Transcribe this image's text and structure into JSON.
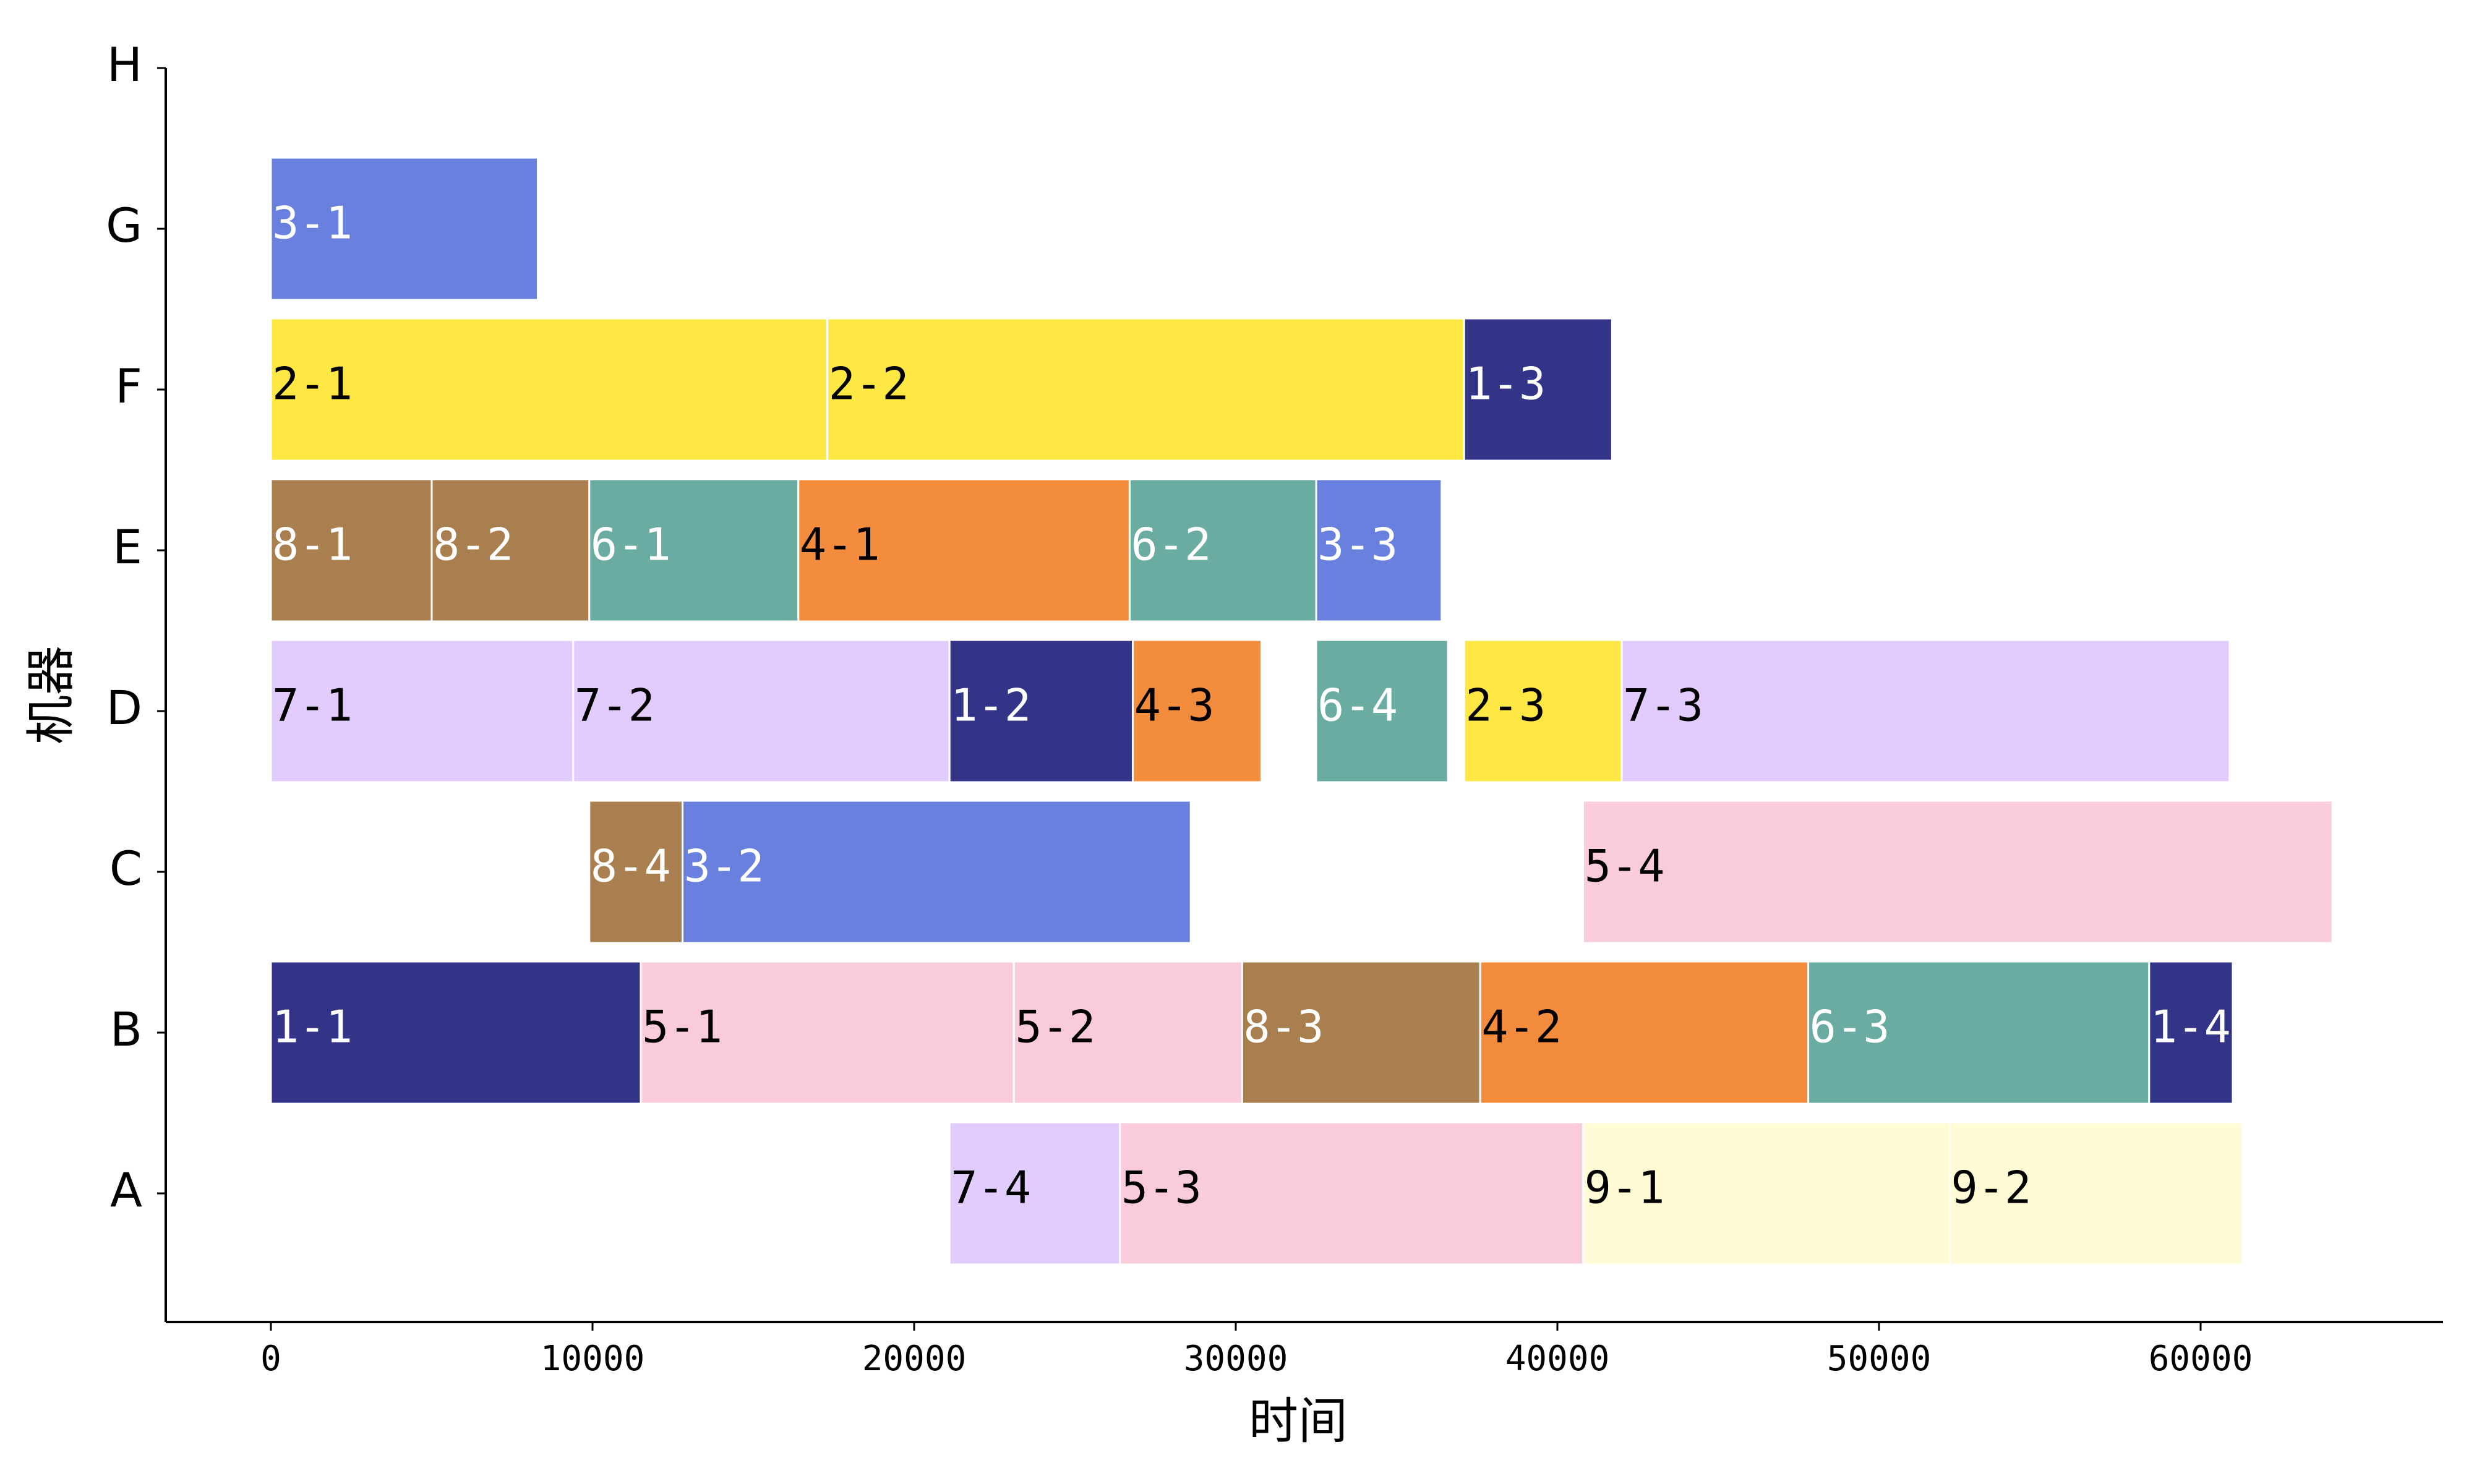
{
  "chart_data": {
    "type": "gantt",
    "xlabel": "时间",
    "ylabel": "机器",
    "xlim": [
      -3200,
      67500
    ],
    "xticks": [
      0,
      10000,
      20000,
      30000,
      40000,
      50000,
      60000
    ],
    "xtick_labels": [
      "0",
      "10000",
      "20000",
      "30000",
      "40000",
      "50000",
      "60000"
    ],
    "machines": [
      "A",
      "B",
      "C",
      "D",
      "E",
      "F",
      "G",
      "H"
    ],
    "grid": false,
    "job_colors": {
      "1": "#333388",
      "2": "#ffe844",
      "3": "#6a80df",
      "4": "#f48c3d",
      "5": "#facbdb",
      "6": "#6aaba2",
      "7": "#e2ccfd",
      "8": "#a97f50",
      "9": "#fffbd4"
    },
    "light_label_jobs": [
      "1",
      "3",
      "6",
      "8"
    ],
    "tasks": [
      {
        "machine": "G",
        "label": "3-1",
        "start": 0,
        "end": 8300
      },
      {
        "machine": "F",
        "label": "2-1",
        "start": 0,
        "end": 17300
      },
      {
        "machine": "F",
        "label": "2-2",
        "start": 17300,
        "end": 37100
      },
      {
        "machine": "F",
        "label": "1-3",
        "start": 37100,
        "end": 41700
      },
      {
        "machine": "E",
        "label": "8-1",
        "start": 0,
        "end": 5000
      },
      {
        "machine": "E",
        "label": "8-2",
        "start": 5000,
        "end": 9900
      },
      {
        "machine": "E",
        "label": "6-1",
        "start": 9900,
        "end": 16400
      },
      {
        "machine": "E",
        "label": "4-1",
        "start": 16400,
        "end": 26700
      },
      {
        "machine": "E",
        "label": "6-2",
        "start": 26700,
        "end": 32500
      },
      {
        "machine": "E",
        "label": "3-3",
        "start": 32500,
        "end": 36400
      },
      {
        "machine": "D",
        "label": "7-1",
        "start": 0,
        "end": 9400
      },
      {
        "machine": "D",
        "label": "7-2",
        "start": 9400,
        "end": 21100
      },
      {
        "machine": "D",
        "label": "1-2",
        "start": 21100,
        "end": 26800
      },
      {
        "machine": "D",
        "label": "4-3",
        "start": 26800,
        "end": 30800
      },
      {
        "machine": "D",
        "label": "6-4",
        "start": 32500,
        "end": 36600
      },
      {
        "machine": "D",
        "label": "2-3",
        "start": 37100,
        "end": 42000
      },
      {
        "machine": "D",
        "label": "7-3",
        "start": 42000,
        "end": 60900
      },
      {
        "machine": "C",
        "label": "8-4",
        "start": 9900,
        "end": 12800
      },
      {
        "machine": "C",
        "label": "3-2",
        "start": 12800,
        "end": 28600
      },
      {
        "machine": "C",
        "label": "5-4",
        "start": 40800,
        "end": 64100
      },
      {
        "machine": "B",
        "label": "1-1",
        "start": 0,
        "end": 11500
      },
      {
        "machine": "B",
        "label": "5-1",
        "start": 11500,
        "end": 23100
      },
      {
        "machine": "B",
        "label": "5-2",
        "start": 23100,
        "end": 30200
      },
      {
        "machine": "B",
        "label": "8-3",
        "start": 30200,
        "end": 37600
      },
      {
        "machine": "B",
        "label": "4-2",
        "start": 37600,
        "end": 47800
      },
      {
        "machine": "B",
        "label": "6-3",
        "start": 47800,
        "end": 58400
      },
      {
        "machine": "B",
        "label": "1-4",
        "start": 58400,
        "end": 61000
      },
      {
        "machine": "A",
        "label": "7-4",
        "start": 21100,
        "end": 26400
      },
      {
        "machine": "A",
        "label": "5-3",
        "start": 26400,
        "end": 40800
      },
      {
        "machine": "A",
        "label": "9-1",
        "start": 40800,
        "end": 52200
      },
      {
        "machine": "A",
        "label": "9-2",
        "start": 52200,
        "end": 61300
      }
    ]
  }
}
